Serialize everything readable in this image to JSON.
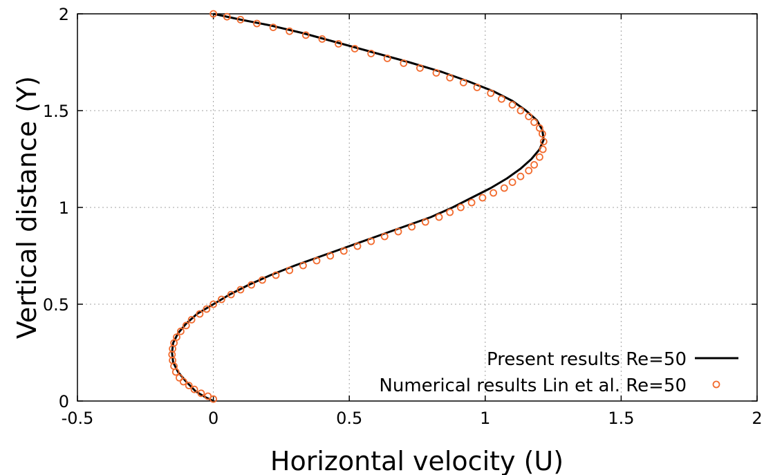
{
  "chart_data": {
    "type": "line",
    "title": "",
    "xlabel": "Horizontal velocity (U)",
    "ylabel": "Vertical distance (Y)",
    "xlim": [
      -0.5,
      2
    ],
    "ylim": [
      0,
      2
    ],
    "xticks": [
      "-0.5",
      "0",
      "0.5",
      "1",
      "1.5",
      "2"
    ],
    "yticks": [
      "0",
      "0.5",
      "1",
      "1.5",
      "2"
    ],
    "grid": true,
    "legend_position": "bottom-right",
    "series": [
      {
        "name": "Present results Re=50",
        "style": "line",
        "color": "#000000",
        "x": [
          0.0,
          -0.03,
          -0.065,
          -0.1,
          -0.13,
          -0.148,
          -0.152,
          -0.148,
          -0.13,
          -0.1,
          -0.06,
          0.0,
          0.06,
          0.13,
          0.21,
          0.3,
          0.4,
          0.5,
          0.6,
          0.7,
          0.8,
          0.88,
          0.95,
          1.02,
          1.08,
          1.13,
          1.17,
          1.2,
          1.215,
          1.21,
          1.19,
          1.15,
          1.1,
          1.03,
          0.94,
          0.84,
          0.72,
          0.59,
          0.46,
          0.33,
          0.21,
          0.1,
          0.0
        ],
        "y": [
          0.0,
          0.02,
          0.05,
          0.1,
          0.15,
          0.2,
          0.25,
          0.3,
          0.35,
          0.4,
          0.45,
          0.5,
          0.55,
          0.6,
          0.65,
          0.7,
          0.75,
          0.8,
          0.85,
          0.9,
          0.95,
          1.0,
          1.05,
          1.1,
          1.15,
          1.2,
          1.25,
          1.3,
          1.35,
          1.4,
          1.45,
          1.5,
          1.55,
          1.6,
          1.65,
          1.7,
          1.75,
          1.8,
          1.85,
          1.9,
          1.94,
          1.97,
          2.0
        ]
      },
      {
        "name": "Numerical results Lin et al. Re=50",
        "style": "markers",
        "marker": "open-circle",
        "color": "#f26b2e",
        "x": [
          0.0,
          -0.02,
          -0.045,
          -0.07,
          -0.09,
          -0.11,
          -0.125,
          -0.138,
          -0.145,
          -0.15,
          -0.152,
          -0.15,
          -0.145,
          -0.135,
          -0.12,
          -0.1,
          -0.08,
          -0.05,
          -0.025,
          0.0,
          0.03,
          0.065,
          0.1,
          0.14,
          0.18,
          0.23,
          0.28,
          0.33,
          0.38,
          0.43,
          0.48,
          0.53,
          0.58,
          0.63,
          0.68,
          0.73,
          0.78,
          0.83,
          0.87,
          0.91,
          0.95,
          0.99,
          1.03,
          1.07,
          1.1,
          1.13,
          1.16,
          1.18,
          1.2,
          1.212,
          1.215,
          1.21,
          1.2,
          1.18,
          1.16,
          1.13,
          1.1,
          1.06,
          1.02,
          0.97,
          0.92,
          0.87,
          0.82,
          0.76,
          0.7,
          0.64,
          0.58,
          0.52,
          0.46,
          0.4,
          0.34,
          0.28,
          0.22,
          0.16,
          0.1,
          0.05,
          0.0
        ],
        "y": [
          0.01,
          0.025,
          0.04,
          0.06,
          0.08,
          0.1,
          0.12,
          0.15,
          0.18,
          0.21,
          0.24,
          0.27,
          0.3,
          0.33,
          0.36,
          0.39,
          0.42,
          0.45,
          0.475,
          0.5,
          0.525,
          0.55,
          0.575,
          0.6,
          0.625,
          0.65,
          0.675,
          0.7,
          0.725,
          0.75,
          0.775,
          0.8,
          0.825,
          0.85,
          0.875,
          0.9,
          0.925,
          0.95,
          0.975,
          1.0,
          1.025,
          1.05,
          1.075,
          1.1,
          1.13,
          1.16,
          1.19,
          1.22,
          1.26,
          1.3,
          1.34,
          1.38,
          1.41,
          1.44,
          1.47,
          1.5,
          1.53,
          1.56,
          1.59,
          1.62,
          1.645,
          1.67,
          1.695,
          1.72,
          1.745,
          1.77,
          1.795,
          1.82,
          1.845,
          1.87,
          1.89,
          1.91,
          1.93,
          1.95,
          1.97,
          1.985,
          2.0
        ]
      }
    ]
  }
}
